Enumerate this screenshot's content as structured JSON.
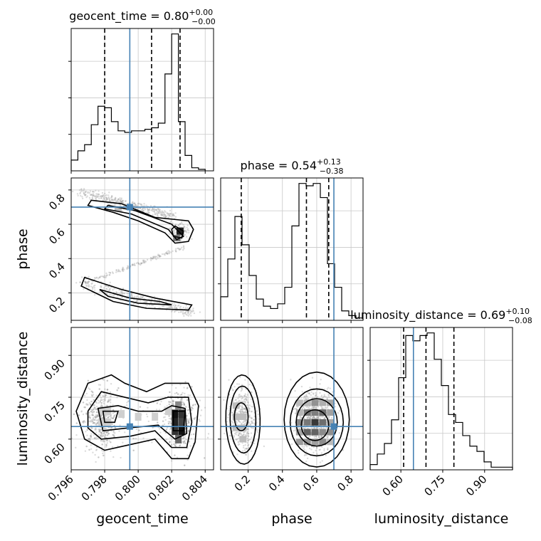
{
  "chart_data": {
    "type": "corner",
    "parameters": [
      "geocent_time",
      "phase",
      "luminosity_distance"
    ],
    "titles": [
      {
        "name": "geocent_time",
        "median": "0.80",
        "plus": "+0.00",
        "minus": "−0.00"
      },
      {
        "name": "phase",
        "median": "0.54",
        "plus": "+0.13",
        "minus": "−0.38"
      },
      {
        "name": "luminosity_distance",
        "median": "0.69",
        "plus": "+0.10",
        "minus": "−0.08"
      }
    ],
    "axes": {
      "geocent_time": {
        "range": [
          0.796,
          0.8045
        ],
        "ticks": [
          "0.796",
          "0.798",
          "0.800",
          "0.802",
          "0.804"
        ]
      },
      "phase": {
        "range": [
          0.04,
          0.87
        ],
        "ticks": [
          "0.2",
          "0.4",
          "0.6",
          "0.8"
        ]
      },
      "luminosity_distance": {
        "range": [
          0.49,
          1.0
        ],
        "ticks": [
          "0.60",
          "0.75",
          "0.90"
        ]
      }
    },
    "axis_labels": {
      "x": [
        "geocent_time",
        "phase",
        "luminosity_distance"
      ],
      "y": [
        "phase",
        "luminosity_distance"
      ]
    },
    "injection": {
      "geocent_time": 0.7995,
      "phase": 0.7,
      "luminosity_distance": 0.645
    },
    "quantiles": {
      "geocent_time": [
        0.798,
        0.8008,
        0.8025
      ],
      "phase": [
        0.16,
        0.54,
        0.67
      ],
      "luminosity_distance": [
        0.61,
        0.69,
        0.79
      ]
    },
    "histograms": {
      "geocent_time": {
        "edges_start": 0.796,
        "bin_width": 0.0004,
        "counts": [
          7,
          13,
          17,
          30,
          42,
          41,
          32,
          26,
          25,
          26,
          26,
          27,
          28,
          31,
          63,
          89,
          32,
          10,
          2,
          1
        ]
      },
      "phase": {
        "edges_start": 0.04,
        "bin_width": 0.0415,
        "counts": [
          10,
          26,
          44,
          32,
          19,
          9,
          6,
          5,
          7,
          14,
          40,
          58,
          57,
          58,
          52,
          24,
          14,
          4,
          2,
          1
        ]
      },
      "luminosity_distance": {
        "edges_start": 0.49,
        "bin_width": 0.0255,
        "counts": [
          2,
          6,
          10,
          19,
          35,
          51,
          49,
          51,
          52,
          42,
          32,
          21,
          18,
          13,
          9,
          7,
          3,
          1,
          1,
          1
        ]
      }
    },
    "grid": true,
    "colors": {
      "injection": "#4682b4",
      "lines": "#000000",
      "grid": "#c8c8c8"
    }
  }
}
